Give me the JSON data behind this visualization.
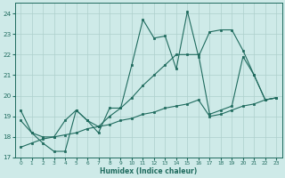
{
  "xlabel": "Humidex (Indice chaleur)",
  "bg_color": "#ceeae8",
  "grid_color": "#aecfcc",
  "line_color": "#1f6b5e",
  "xlim": [
    -0.5,
    23.5
  ],
  "ylim": [
    17,
    24.5
  ],
  "xticks": [
    0,
    1,
    2,
    3,
    4,
    5,
    6,
    7,
    8,
    9,
    10,
    11,
    12,
    13,
    14,
    15,
    16,
    17,
    18,
    19,
    20,
    21,
    22,
    23
  ],
  "yticks": [
    17,
    18,
    19,
    20,
    21,
    22,
    23,
    24
  ],
  "series1_x": [
    0,
    1,
    2,
    3,
    4,
    5,
    6,
    7,
    8,
    9,
    10,
    11,
    12,
    13,
    14,
    15,
    16,
    17,
    18,
    19,
    20,
    21,
    22,
    23
  ],
  "series1_y": [
    19.3,
    18.2,
    17.7,
    17.3,
    17.3,
    19.3,
    18.8,
    18.2,
    19.4,
    19.4,
    21.5,
    23.7,
    22.8,
    22.9,
    21.3,
    24.1,
    21.9,
    23.1,
    23.2,
    23.2,
    22.2,
    21.0,
    19.8,
    19.9
  ],
  "series2_x": [
    0,
    1,
    2,
    3,
    4,
    5,
    6,
    7,
    8,
    9,
    10,
    11,
    12,
    13,
    14,
    15,
    16,
    17,
    18,
    19,
    20,
    21,
    22,
    23
  ],
  "series2_y": [
    18.8,
    18.2,
    18.0,
    18.0,
    18.8,
    19.3,
    18.8,
    18.5,
    19.0,
    19.4,
    19.9,
    20.5,
    21.0,
    21.5,
    22.0,
    22.0,
    22.0,
    19.1,
    19.3,
    19.5,
    21.9,
    21.0,
    19.8,
    19.9
  ],
  "series3_x": [
    0,
    1,
    2,
    3,
    4,
    5,
    6,
    7,
    8,
    9,
    10,
    11,
    12,
    13,
    14,
    15,
    16,
    17,
    18,
    19,
    20,
    21,
    22,
    23
  ],
  "series3_y": [
    17.5,
    17.7,
    17.9,
    18.0,
    18.1,
    18.2,
    18.4,
    18.5,
    18.6,
    18.8,
    18.9,
    19.1,
    19.2,
    19.4,
    19.5,
    19.6,
    19.8,
    19.0,
    19.1,
    19.3,
    19.5,
    19.6,
    19.8,
    19.9
  ]
}
